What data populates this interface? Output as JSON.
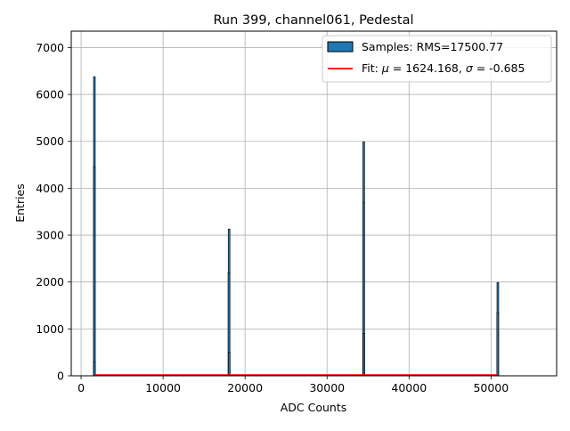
{
  "chart_data": {
    "type": "bar",
    "title": "Run 399, channel061, Pedestal",
    "xlabel": "ADC Counts",
    "ylabel": "Entries",
    "xlim": [
      -1200,
      58000
    ],
    "ylim": [
      0,
      7350
    ],
    "xticks": [
      0,
      10000,
      20000,
      30000,
      40000,
      50000
    ],
    "yticks": [
      0,
      1000,
      2000,
      3000,
      4000,
      5000,
      6000,
      7000
    ],
    "grid": true,
    "legend_position": "top-right",
    "colors": {
      "bar_fill": "#1f77b4",
      "bar_edge": "#000000",
      "fit_line": "#ff0000",
      "grid": "#b0b0b0"
    },
    "series": [
      {
        "name": "Samples: RMS=17500.77",
        "kind": "histogram",
        "x": [
          1624,
          1610,
          1640,
          18050,
          18030,
          18070,
          34470,
          34450,
          34490,
          50830,
          50810
        ],
        "values": [
          6380,
          4450,
          300,
          3130,
          2200,
          500,
          4990,
          3700,
          900,
          1990,
          1350
        ]
      },
      {
        "name_parts": [
          "Fit: ",
          "μ",
          " = 1624.168, ",
          "σ",
          " = -0.685"
        ],
        "kind": "line",
        "x": [
          1600,
          50830
        ],
        "values": [
          15,
          15
        ]
      }
    ]
  }
}
